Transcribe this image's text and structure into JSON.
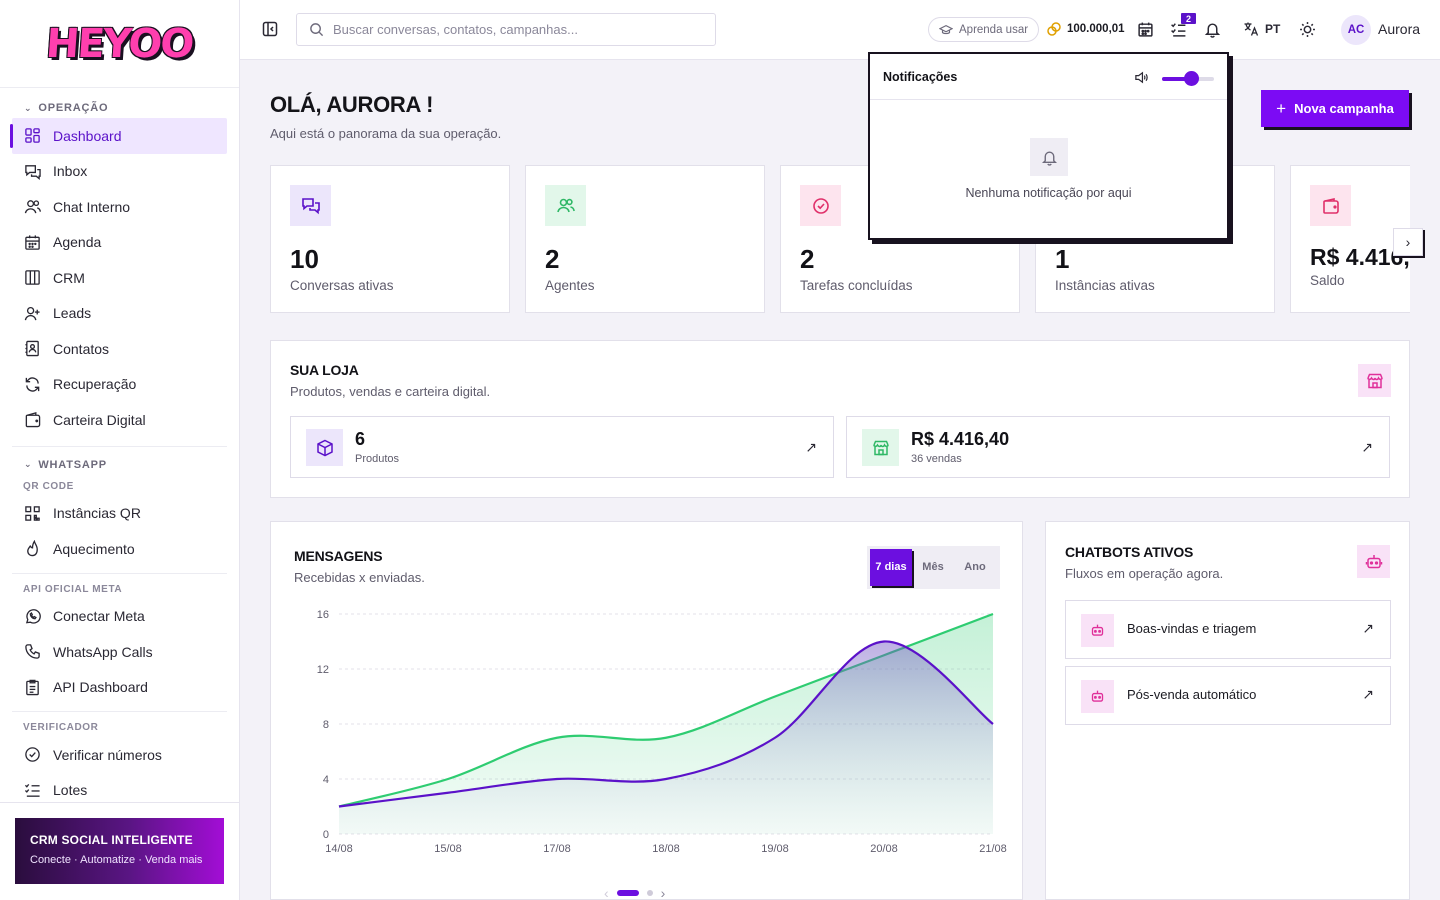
{
  "app": {
    "logo_text": "HEYOO"
  },
  "sidebar": {
    "operacao_title": "OPERAÇÃO",
    "operacao_items": [
      {
        "label": "Dashboard",
        "icon": "dashboard-icon",
        "active": true
      },
      {
        "label": "Inbox",
        "icon": "inbox-icon"
      },
      {
        "label": "Chat Interno",
        "icon": "users-icon"
      },
      {
        "label": "Agenda",
        "icon": "calendar-icon"
      },
      {
        "label": "CRM",
        "icon": "kanban-icon"
      },
      {
        "label": "Leads",
        "icon": "user-plus-icon"
      },
      {
        "label": "Contatos",
        "icon": "contact-book-icon"
      },
      {
        "label": "Recuperação",
        "icon": "refresh-icon"
      },
      {
        "label": "Carteira Digital",
        "icon": "wallet-icon"
      }
    ],
    "whatsapp_title": "WHATSAPP",
    "qr_subtitle": "QR CODE",
    "qr_items": [
      {
        "label": "Instâncias QR",
        "icon": "qr-icon"
      },
      {
        "label": "Aquecimento",
        "icon": "flame-icon"
      }
    ],
    "meta_subtitle": "API OFICIAL META",
    "meta_items": [
      {
        "label": "Conectar Meta",
        "icon": "whatsapp-icon"
      },
      {
        "label": "WhatsApp Calls",
        "icon": "phone-icon"
      },
      {
        "label": "API Dashboard",
        "icon": "clipboard-icon"
      }
    ],
    "verificador_subtitle": "VERIFICADOR",
    "verificador_items": [
      {
        "label": "Verificar números",
        "icon": "check-circle-icon"
      },
      {
        "label": "Lotes",
        "icon": "list-check-icon"
      }
    ],
    "promo": {
      "title": "CRM SOCIAL INTELIGENTE",
      "subtitle": "Conecte · Automatize · Venda mais"
    }
  },
  "topbar": {
    "search_placeholder": "Buscar conversas, contatos, campanhas...",
    "learn_label": "Aprenda usar",
    "credits": "100.000,01",
    "tasks_badge": "2",
    "language": "PT",
    "avatar_initials": "AC",
    "user_name": "Aurora"
  },
  "main": {
    "greeting": "OLÁ, AURORA !",
    "greeting_sub": "Aqui está o panorama da sua operação.",
    "new_campaign_label": "Nova campanha",
    "stats": [
      {
        "value": "10",
        "label": "Conversas ativas",
        "icon": "chat-bubbles-icon"
      },
      {
        "value": "2",
        "label": "Agentes",
        "icon": "users-icon"
      },
      {
        "value": "2",
        "label": "Tarefas concluídas",
        "icon": "check-circle-icon"
      },
      {
        "value": "1",
        "label": "Instâncias ativas",
        "icon": "server-icon"
      },
      {
        "value": "R$ 4.416,",
        "label": "Saldo",
        "icon": "wallet-icon"
      }
    ],
    "shop": {
      "title": "SUA LOJA",
      "subtitle": "Produtos, vendas e carteira digital.",
      "products_value": "6",
      "products_label": "Produtos",
      "sales_value": "R$ 4.416,40",
      "sales_label": "36 vendas"
    },
    "messages": {
      "title": "MENSAGENS",
      "subtitle": "Recebidas x enviadas.",
      "periods": [
        "7 dias",
        "Mês",
        "Ano"
      ],
      "selected_period": "7 dias"
    },
    "chatbots": {
      "title": "CHATBOTS ATIVOS",
      "subtitle": "Fluxos em operação agora.",
      "items": [
        "Boas-vindas e triagem",
        "Pós-venda automático"
      ]
    }
  },
  "notifications": {
    "title": "Notificações",
    "empty_text": "Nenhuma notificação por aqui",
    "sound_level": 0.55
  },
  "chart_data": {
    "type": "area",
    "x": [
      "14/08",
      "15/08",
      "17/08",
      "18/08",
      "19/08",
      "20/08",
      "21/08"
    ],
    "ylim": [
      0,
      16
    ],
    "yticks": [
      0,
      4,
      8,
      12,
      16
    ],
    "grid": true,
    "series": [
      {
        "values": [
          2,
          4,
          7,
          7,
          10,
          13,
          16
        ],
        "color": "#2ecc71"
      },
      {
        "values": [
          2,
          3,
          4,
          4,
          7,
          14,
          8
        ],
        "color": "#5b12c9"
      }
    ]
  },
  "colors": {
    "brand": "#7c0bf4",
    "accent": "#5b12c9",
    "green": "#2ecc71",
    "pink": "#e0309a"
  }
}
